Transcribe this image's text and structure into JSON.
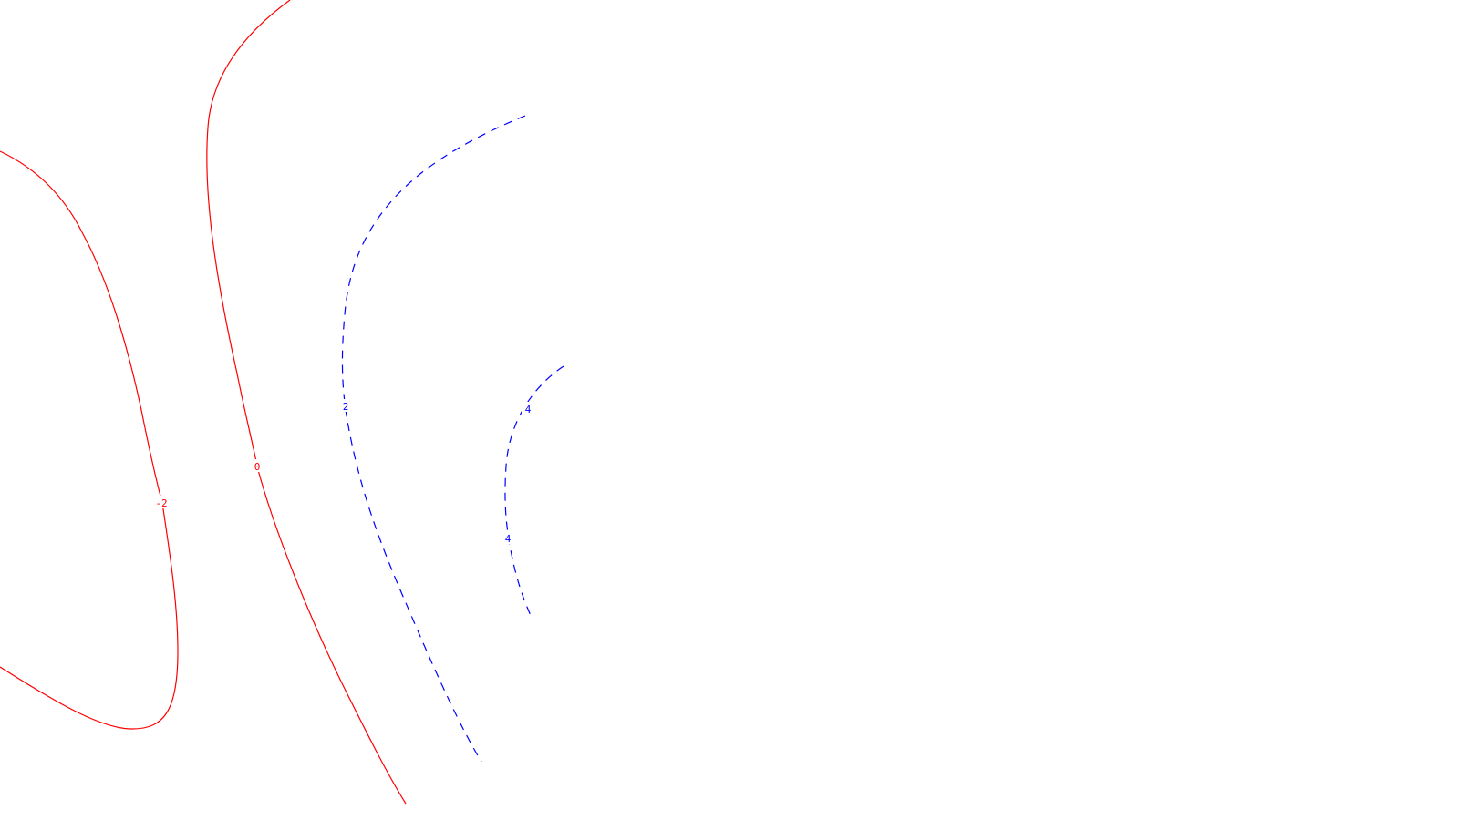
{
  "chart_data": {
    "type": "contour",
    "title": "",
    "xlabel": "",
    "ylabel": "",
    "grid": false,
    "axes_visible": false,
    "contours": [
      {
        "level": -2,
        "label": "-2",
        "color": "#ff0000",
        "line_style": "solid"
      },
      {
        "level": 0,
        "label": "0",
        "color": "#ff0000",
        "line_style": "solid"
      },
      {
        "level": 2,
        "label": "2",
        "color": "#0000ff",
        "line_style": "dashed"
      },
      {
        "level": 4,
        "label": "4",
        "color": "#0000ff",
        "line_style": "dashed"
      }
    ]
  }
}
